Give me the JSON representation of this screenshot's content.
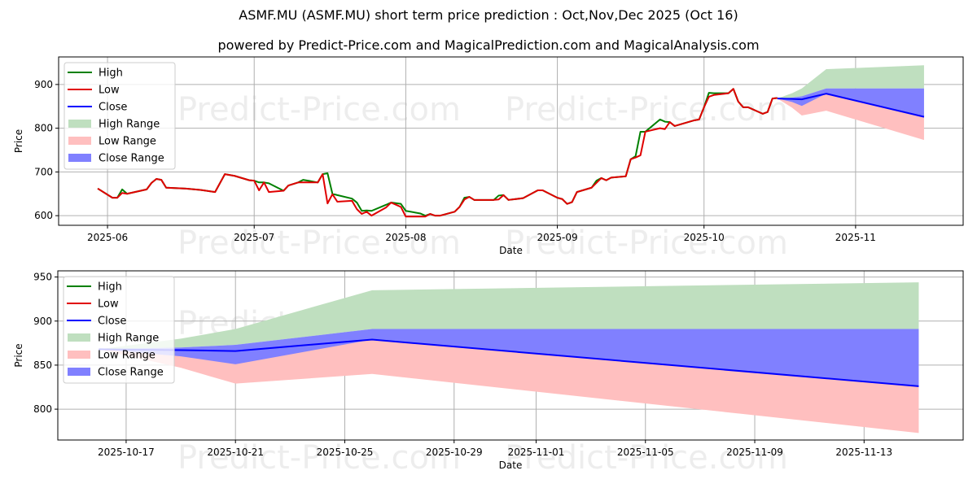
{
  "title": "ASMF.MU (ASMF.MU) short term price prediction : Oct,Nov,Dec 2025 (Oct 16)",
  "subtitle": "powered by Predict-Price.com and MagicalPrediction.com and MagicalAnalysis.com",
  "watermark": "Predict-Price.com",
  "colors": {
    "high": "#008000",
    "low": "#e00000",
    "close": "#0000ff",
    "high_range": "#bfdfbf",
    "low_range": "#ffbfbf",
    "close_range": "#8080ff"
  },
  "legend": [
    "High",
    "Low",
    "Close",
    "High Range",
    "Low Range",
    "Close Range"
  ],
  "chart_data": [
    {
      "type": "line",
      "name": "history-and-forecast",
      "xlabel": "Date",
      "ylabel": "Price",
      "xlim": [
        "2025-05-22",
        "2025-11-23"
      ],
      "ylim": [
        578,
        963
      ],
      "yticks": [
        600,
        700,
        800,
        900
      ],
      "xticks": [
        "2025-06-01",
        "2025-07-01",
        "2025-08-01",
        "2025-09-01",
        "2025-10-01",
        "2025-11-01"
      ],
      "xticklabels": [
        "2025-06",
        "2025-07",
        "2025-08",
        "2025-09",
        "2025-10",
        "2025-11"
      ],
      "grid": true,
      "legend_position": "top-left",
      "history": {
        "dates": [
          "2025-05-30",
          "2025-06-02",
          "2025-06-03",
          "2025-06-04",
          "2025-06-05",
          "2025-06-09",
          "2025-06-10",
          "2025-06-11",
          "2025-06-12",
          "2025-06-13",
          "2025-06-17",
          "2025-06-20",
          "2025-06-23",
          "2025-06-25",
          "2025-06-27",
          "2025-06-30",
          "2025-07-01",
          "2025-07-02",
          "2025-07-03",
          "2025-07-04",
          "2025-07-07",
          "2025-07-08",
          "2025-07-10",
          "2025-07-11",
          "2025-07-14",
          "2025-07-15",
          "2025-07-16",
          "2025-07-17",
          "2025-07-18",
          "2025-07-21",
          "2025-07-22",
          "2025-07-23",
          "2025-07-24",
          "2025-07-25",
          "2025-07-28",
          "2025-07-29",
          "2025-07-31",
          "2025-08-01",
          "2025-08-04",
          "2025-08-05",
          "2025-08-06",
          "2025-08-07",
          "2025-08-08",
          "2025-08-11",
          "2025-08-12",
          "2025-08-13",
          "2025-08-14",
          "2025-08-15",
          "2025-08-19",
          "2025-08-20",
          "2025-08-21",
          "2025-08-22",
          "2025-08-25",
          "2025-08-28",
          "2025-08-29",
          "2025-09-01",
          "2025-09-02",
          "2025-09-03",
          "2025-09-04",
          "2025-09-05",
          "2025-09-08",
          "2025-09-09",
          "2025-09-10",
          "2025-09-11",
          "2025-09-12",
          "2025-09-15",
          "2025-09-16",
          "2025-09-17",
          "2025-09-18",
          "2025-09-19",
          "2025-09-22",
          "2025-09-23",
          "2025-09-24",
          "2025-09-25",
          "2025-09-29",
          "2025-09-30",
          "2025-10-01",
          "2025-10-02",
          "2025-10-03",
          "2025-10-06",
          "2025-10-07",
          "2025-10-08",
          "2025-10-09",
          "2025-10-10",
          "2025-10-13",
          "2025-10-14",
          "2025-10-15",
          "2025-10-16"
        ],
        "high": [
          662,
          641,
          641,
          660,
          650,
          660,
          675,
          684,
          682,
          664,
          662,
          659,
          654,
          695,
          691,
          681,
          680,
          676,
          676,
          674,
          657,
          669,
          676,
          682,
          676,
          695,
          697,
          650,
          647,
          639,
          630,
          611,
          612,
          611,
          625,
          630,
          627,
          611,
          605,
          600,
          604,
          600,
          600,
          609,
          620,
          641,
          643,
          636,
          636,
          646,
          647,
          636,
          640,
          658,
          658,
          641,
          638,
          627,
          631,
          654,
          664,
          680,
          686,
          681,
          687,
          690,
          729,
          736,
          792,
          792,
          820,
          815,
          814,
          805,
          818,
          820,
          848,
          881,
          880,
          880,
          890,
          861,
          848,
          848,
          833,
          837,
          868,
          869
        ],
        "low": [
          662,
          641,
          641,
          652,
          650,
          660,
          675,
          684,
          682,
          664,
          662,
          659,
          654,
          695,
          691,
          681,
          680,
          658,
          676,
          654,
          657,
          669,
          676,
          676,
          676,
          695,
          628,
          649,
          632,
          634,
          615,
          604,
          609,
          600,
          619,
          630,
          620,
          598,
          598,
          598,
          604,
          600,
          600,
          609,
          620,
          637,
          643,
          636,
          636,
          637,
          647,
          636,
          640,
          658,
          658,
          641,
          638,
          627,
          631,
          654,
          664,
          675,
          686,
          681,
          687,
          690,
          729,
          733,
          738,
          792,
          800,
          798,
          814,
          805,
          818,
          820,
          848,
          872,
          876,
          880,
          890,
          861,
          848,
          848,
          833,
          837,
          868,
          869
        ]
      }
    },
    {
      "type": "area",
      "name": "forecast-zoom",
      "xlabel": "Date",
      "ylabel": "Price",
      "xlim": [
        "2025-10-14T12:00",
        "2025-11-16T15:00"
      ],
      "ylim": [
        765,
        957
      ],
      "yticks": [
        800,
        850,
        900,
        950
      ],
      "xticks": [
        "2025-10-17",
        "2025-10-21",
        "2025-10-25",
        "2025-10-29",
        "2025-11-01",
        "2025-11-05",
        "2025-11-09",
        "2025-11-13"
      ],
      "xticklabels": [
        "2025-10-17",
        "2025-10-21",
        "2025-10-25",
        "2025-10-29",
        "2025-11-01",
        "2025-11-05",
        "2025-11-09",
        "2025-11-13"
      ],
      "grid": true,
      "legend_position": "top-left"
    }
  ],
  "forecast": {
    "dates": [
      "2025-10-16",
      "2025-10-19",
      "2025-10-21",
      "2025-10-26",
      "2025-11-15"
    ],
    "close": [
      868,
      867,
      866,
      879,
      826
    ],
    "close_high": [
      868,
      870,
      873,
      891,
      891
    ],
    "close_low": [
      868,
      860,
      851,
      879,
      826
    ],
    "high_high": [
      868,
      880,
      891,
      935,
      944
    ],
    "low_low": [
      868,
      847,
      829,
      840,
      773
    ]
  }
}
